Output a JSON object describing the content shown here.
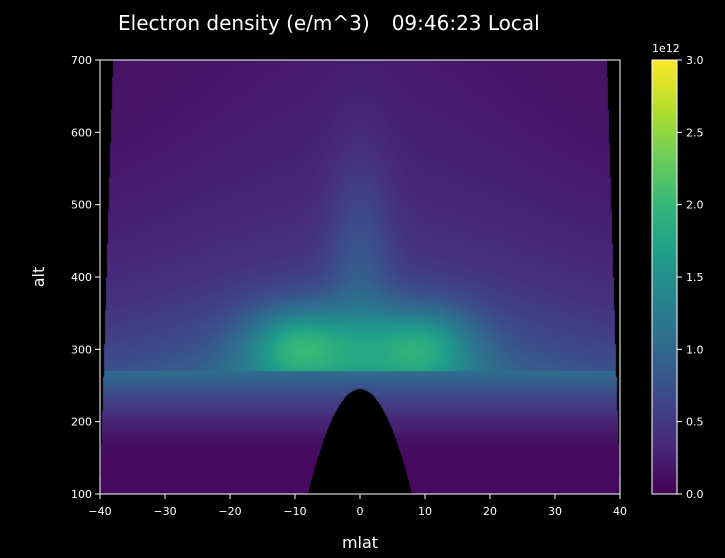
{
  "chart_data": {
    "type": "heatmap",
    "title": "Electron density (e/m^3)",
    "time_label": "09:46:23 Local",
    "xlabel": "mlat",
    "ylabel": "alt",
    "xlim": [
      -40,
      40
    ],
    "ylim": [
      100,
      700
    ],
    "x_ticks": [
      -40,
      -30,
      -20,
      -10,
      0,
      10,
      20,
      30,
      40
    ],
    "y_ticks": [
      100,
      200,
      300,
      400,
      500,
      600,
      700
    ],
    "colorbar": {
      "colormap": "viridis",
      "range": [
        0,
        3.0
      ],
      "multiplier": "1e12",
      "ticks": [
        "0.0",
        "0.5",
        "1.0",
        "1.5",
        "2.0",
        "2.5",
        "3.0"
      ]
    },
    "peak_density_e12": [
      {
        "mlat": -9,
        "alt": 305,
        "value": 2.1
      },
      {
        "mlat": 9,
        "alt": 305,
        "value": 2.0
      }
    ],
    "shell_edge_mlat_at_top": 38,
    "shell_edge_mlat_at_bottom": 40,
    "no_data_dome": {
      "peak_alt": 245,
      "base_half_width_mlat": 8
    },
    "colors": {
      "background": "#000000",
      "no_data": "#000000"
    }
  }
}
